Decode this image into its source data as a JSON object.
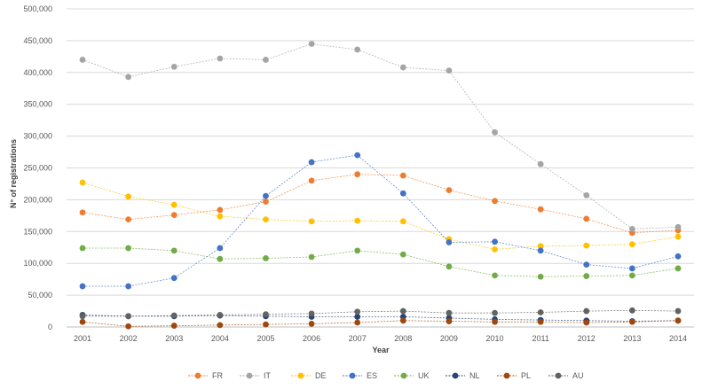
{
  "chart_data": {
    "type": "line",
    "title": "",
    "xlabel": "Year",
    "ylabel": "N° of registrations",
    "ylim": [
      0,
      500000
    ],
    "yticks": [
      "0",
      "50,000",
      "100,000",
      "150,000",
      "200,000",
      "250,000",
      "300,000",
      "350,000",
      "400,000",
      "450,000",
      "500,000"
    ],
    "categories": [
      "2001",
      "2002",
      "2003",
      "2004",
      "2005",
      "2006",
      "2007",
      "2008",
      "2009",
      "2010",
      "2011",
      "2012",
      "2013",
      "2014"
    ],
    "grid": true,
    "legend_position": "bottom",
    "series": [
      {
        "name": "FR",
        "color": "#ed7d31",
        "values": [
          180000,
          169000,
          176000,
          184000,
          197000,
          230000,
          240000,
          238000,
          215000,
          198000,
          185000,
          170000,
          148000,
          152000
        ]
      },
      {
        "name": "IT",
        "color": "#a5a5a5",
        "values": [
          420000,
          393000,
          409000,
          422000,
          420000,
          445000,
          436000,
          408000,
          403000,
          306000,
          256000,
          207000,
          154000,
          157000
        ]
      },
      {
        "name": "DE",
        "color": "#ffc000",
        "values": [
          227000,
          205000,
          192000,
          174000,
          169000,
          166000,
          167000,
          166000,
          138000,
          122000,
          127000,
          128000,
          130000,
          142000
        ]
      },
      {
        "name": "ES",
        "color": "#4472c4",
        "values": [
          64000,
          64000,
          77000,
          124000,
          206000,
          259000,
          270000,
          210000,
          133000,
          134000,
          120000,
          98000,
          92000,
          111000
        ]
      },
      {
        "name": "UK",
        "color": "#70ad47",
        "values": [
          124000,
          124000,
          120000,
          107000,
          108000,
          110000,
          120000,
          114000,
          95000,
          81000,
          79000,
          80000,
          81000,
          92000
        ]
      },
      {
        "name": "NL",
        "color": "#264478",
        "values": [
          19000,
          17000,
          17000,
          18000,
          17000,
          16000,
          16000,
          16000,
          14000,
          12000,
          11000,
          10000,
          9000,
          10000
        ]
      },
      {
        "name": "PL",
        "color": "#9e480e",
        "values": [
          8000,
          1000,
          2000,
          3000,
          4000,
          5000,
          7000,
          10000,
          9000,
          8000,
          8000,
          7000,
          8000,
          10000
        ]
      },
      {
        "name": "AU",
        "color": "#636363",
        "values": [
          17000,
          17000,
          18000,
          19000,
          20000,
          21000,
          24000,
          25000,
          22000,
          22000,
          23000,
          25000,
          26000,
          25000
        ]
      }
    ]
  }
}
